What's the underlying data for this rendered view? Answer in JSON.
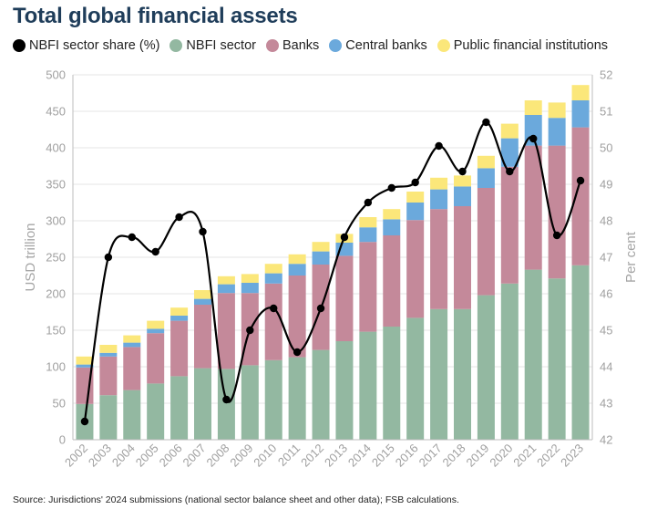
{
  "title": "Total global financial assets",
  "footer": "Source: Jurisdictions' 2024 submissions (national sector balance sheet and other data); FSB calculations.",
  "colors": {
    "title": "#1f3d5a",
    "nbfi": "#93b8a1",
    "banks": "#c4899a",
    "central_banks": "#6ba9dc",
    "public": "#fbe77a",
    "line": "#000000"
  },
  "legend": [
    {
      "label": "NBFI sector share (%)",
      "icon": "line-marker-icon"
    },
    {
      "label": "NBFI sector",
      "icon": "nbfi-swatch-icon"
    },
    {
      "label": "Banks",
      "icon": "banks-swatch-icon"
    },
    {
      "label": "Central banks",
      "icon": "central-banks-swatch-icon"
    },
    {
      "label": "Public financial institutions",
      "icon": "public-swatch-icon"
    }
  ],
  "chart_data": {
    "type": "bar",
    "stacked": true,
    "categories": [
      "2002",
      "2003",
      "2004",
      "2005",
      "2006",
      "2007",
      "2008",
      "2009",
      "2010",
      "2011",
      "2012",
      "2013",
      "2014",
      "2015",
      "2016",
      "2017",
      "2018",
      "2019",
      "2020",
      "2021",
      "2022",
      "2023"
    ],
    "series": [
      {
        "name": "NBFI sector",
        "values": [
          49,
          61,
          68,
          77,
          87,
          98,
          97,
          102,
          109,
          113,
          123,
          135,
          148,
          155,
          167,
          179,
          179,
          198,
          214,
          233,
          221,
          239
        ]
      },
      {
        "name": "Banks",
        "values": [
          50,
          53,
          59,
          69,
          76,
          87,
          104,
          99,
          105,
          112,
          117,
          117,
          123,
          125,
          134,
          137,
          141,
          147,
          160,
          170,
          182,
          189
        ]
      },
      {
        "name": "Central banks",
        "values": [
          4,
          5,
          6,
          6,
          7,
          8,
          12,
          14,
          14,
          16,
          18,
          18,
          20,
          22,
          24,
          27,
          27,
          27,
          39,
          42,
          38,
          37
        ]
      },
      {
        "name": "Public financial institutions",
        "values": [
          11,
          11,
          10,
          11,
          11,
          12,
          11,
          12,
          13,
          13,
          13,
          12,
          14,
          14,
          15,
          16,
          15,
          17,
          20,
          20,
          21,
          21
        ]
      }
    ],
    "line_series": {
      "name": "NBFI sector share (%)",
      "values": [
        42.5,
        47.0,
        47.55,
        47.15,
        48.1,
        47.7,
        43.1,
        45.0,
        45.6,
        44.4,
        45.6,
        47.55,
        48.5,
        48.9,
        49.05,
        50.05,
        49.35,
        50.7,
        49.35,
        50.25,
        47.6,
        49.1
      ]
    },
    "ylabel": "USD trillion",
    "y2label": "Per cent",
    "ylim": [
      0,
      500
    ],
    "yticks": [
      "0",
      "50",
      "100",
      "150",
      "200",
      "250",
      "300",
      "350",
      "400",
      "450",
      "500"
    ],
    "y2lim": [
      42,
      52
    ],
    "y2ticks": [
      "42",
      "43",
      "44",
      "45",
      "46",
      "47",
      "48",
      "49",
      "50",
      "51",
      "52"
    ],
    "grid": true,
    "legend_position": "top"
  }
}
